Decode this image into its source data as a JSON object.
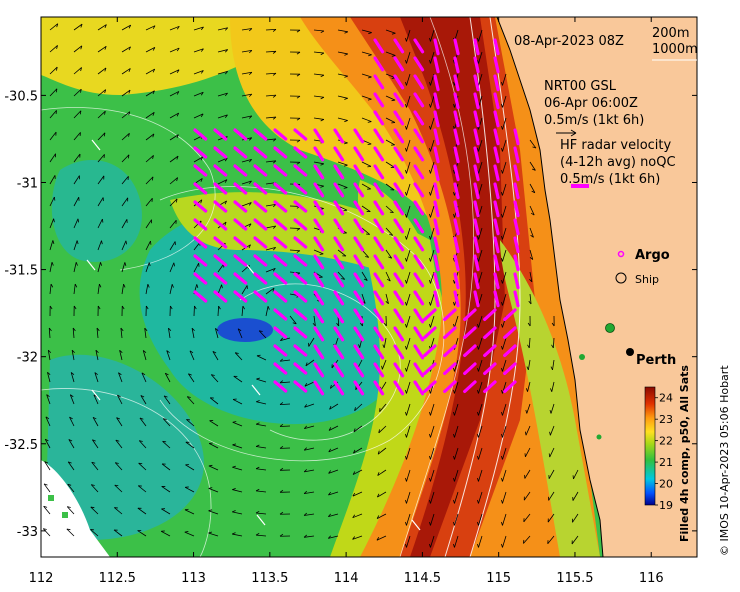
{
  "map": {
    "timestamp": "08-Apr-2023 08Z",
    "isobaths": [
      "200m",
      "1000m"
    ],
    "gsl_lines": [
      "NRT00 GSL",
      "06-Apr 06:00Z",
      "0.5m/s (1kt 6h)"
    ],
    "hf_lines": [
      "HF radar velocity",
      "(4-12h avg) noQC",
      "0.5m/s (1kt 6h)"
    ],
    "legend_argo": "Argo",
    "legend_ship": "Ship",
    "city": "Perth",
    "colorbar": {
      "title": "Filled 4h comp, p50, All Sats",
      "ticks": [
        "24",
        "23",
        "22",
        "21",
        "20",
        "19"
      ],
      "min": 19,
      "max": 24.5
    },
    "x_ticks": [
      "112",
      "112.5",
      "113",
      "113.5",
      "114",
      "114.5",
      "115",
      "115.5",
      "116"
    ],
    "y_ticks": [
      "-30.5",
      "-31",
      "-31.5",
      "-32",
      "-32.5",
      "-33"
    ],
    "x_range": [
      112,
      116.3
    ],
    "y_range": [
      -33.15,
      -30.05
    ],
    "credit": "© IMOS 10-Apr-2023 05:06 Hobart",
    "colors": {
      "land": "#f9c89a",
      "hf_arrow": "#ff00ff",
      "isobath": "#ffffff"
    }
  }
}
